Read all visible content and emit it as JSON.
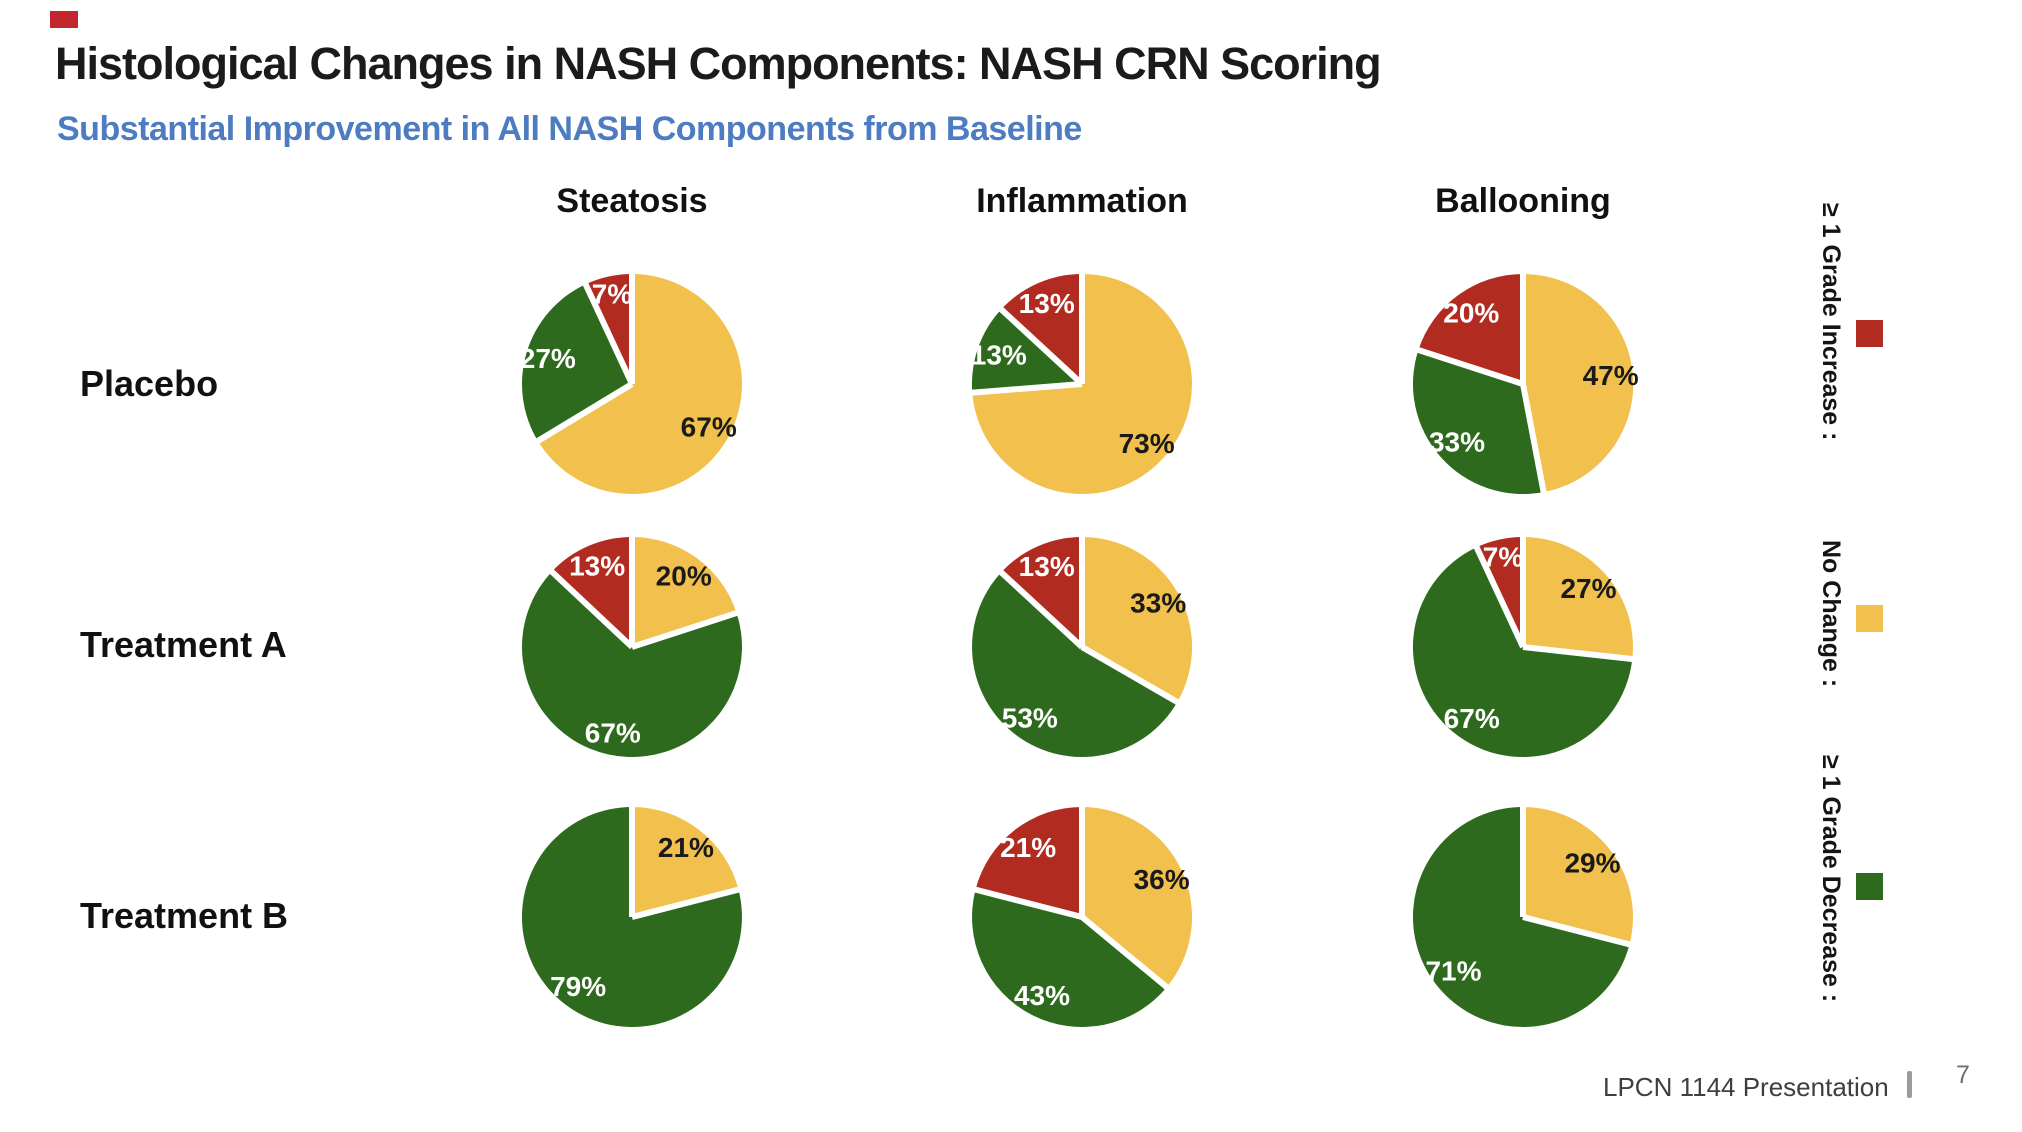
{
  "slide": {
    "title": "Histological Changes in NASH Components: NASH CRN Scoring",
    "subtitle": "Substantial Improvement in All NASH Components from Baseline",
    "subtitle_color": "#4d7cc2"
  },
  "colors": {
    "increase": "#b22b20",
    "no_change": "#f2c04c",
    "decrease": "#2e6a1e"
  },
  "legend": [
    {
      "key": "increase",
      "label": "≥ 1 Grade Increase :"
    },
    {
      "key": "no_change",
      "label": "No Change :"
    },
    {
      "key": "decrease",
      "label": "≥ 1 Grade Decrease :"
    }
  ],
  "chart_data": {
    "type": "pie",
    "unit": "%",
    "layout": "3x3 grid of pies; slices drawn clockwise from 12 o'clock in order: no_change (yellow), decrease (green), increase (red)",
    "columns": [
      "Steatosis",
      "Inflammation",
      "Ballooning"
    ],
    "rows": [
      "Placebo",
      "Treatment A",
      "Treatment B"
    ],
    "legend_position": "right",
    "pies": [
      {
        "row": "Placebo",
        "column": "Steatosis",
        "no_change": 67,
        "decrease": 27,
        "increase": 7
      },
      {
        "row": "Placebo",
        "column": "Inflammation",
        "no_change": 73,
        "decrease": 13,
        "increase": 13
      },
      {
        "row": "Placebo",
        "column": "Ballooning",
        "no_change": 47,
        "decrease": 33,
        "increase": 20
      },
      {
        "row": "Treatment A",
        "column": "Steatosis",
        "no_change": 20,
        "decrease": 67,
        "increase": 13
      },
      {
        "row": "Treatment A",
        "column": "Inflammation",
        "no_change": 33,
        "decrease": 53,
        "increase": 13
      },
      {
        "row": "Treatment A",
        "column": "Ballooning",
        "no_change": 27,
        "decrease": 67,
        "increase": 7
      },
      {
        "row": "Treatment B",
        "column": "Steatosis",
        "no_change": 21,
        "decrease": 79,
        "increase": 0
      },
      {
        "row": "Treatment B",
        "column": "Inflammation",
        "no_change": 36,
        "decrease": 43,
        "increase": 21
      },
      {
        "row": "Treatment B",
        "column": "Ballooning",
        "no_change": 29,
        "decrease": 71,
        "increase": 0
      }
    ]
  },
  "footer": {
    "text": "LPCN 1144 Presentation",
    "page_number": "7"
  }
}
